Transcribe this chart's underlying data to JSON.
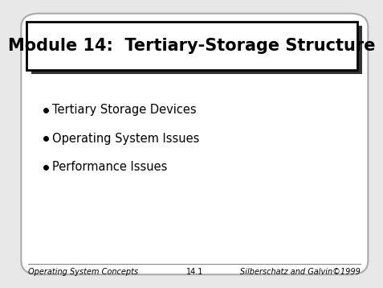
{
  "title": "Module 14:  Tertiary-Storage Structure",
  "bullet_items": [
    "Tertiary Storage Devices",
    "Operating System Issues",
    "Performance Issues"
  ],
  "footer_left": "Operating System Concepts",
  "footer_center": "14.1",
  "footer_right": "Silberschatz and Galvin©1999",
  "bg_color": "#e8e8e8",
  "slide_bg": "#ffffff",
  "title_box_bg": "#ffffff",
  "title_box_border": "#000000",
  "title_color": "#000000",
  "bullet_color": "#000000",
  "footer_color": "#000000",
  "title_fontsize": 15,
  "bullet_fontsize": 10.5,
  "footer_fontsize": 7
}
